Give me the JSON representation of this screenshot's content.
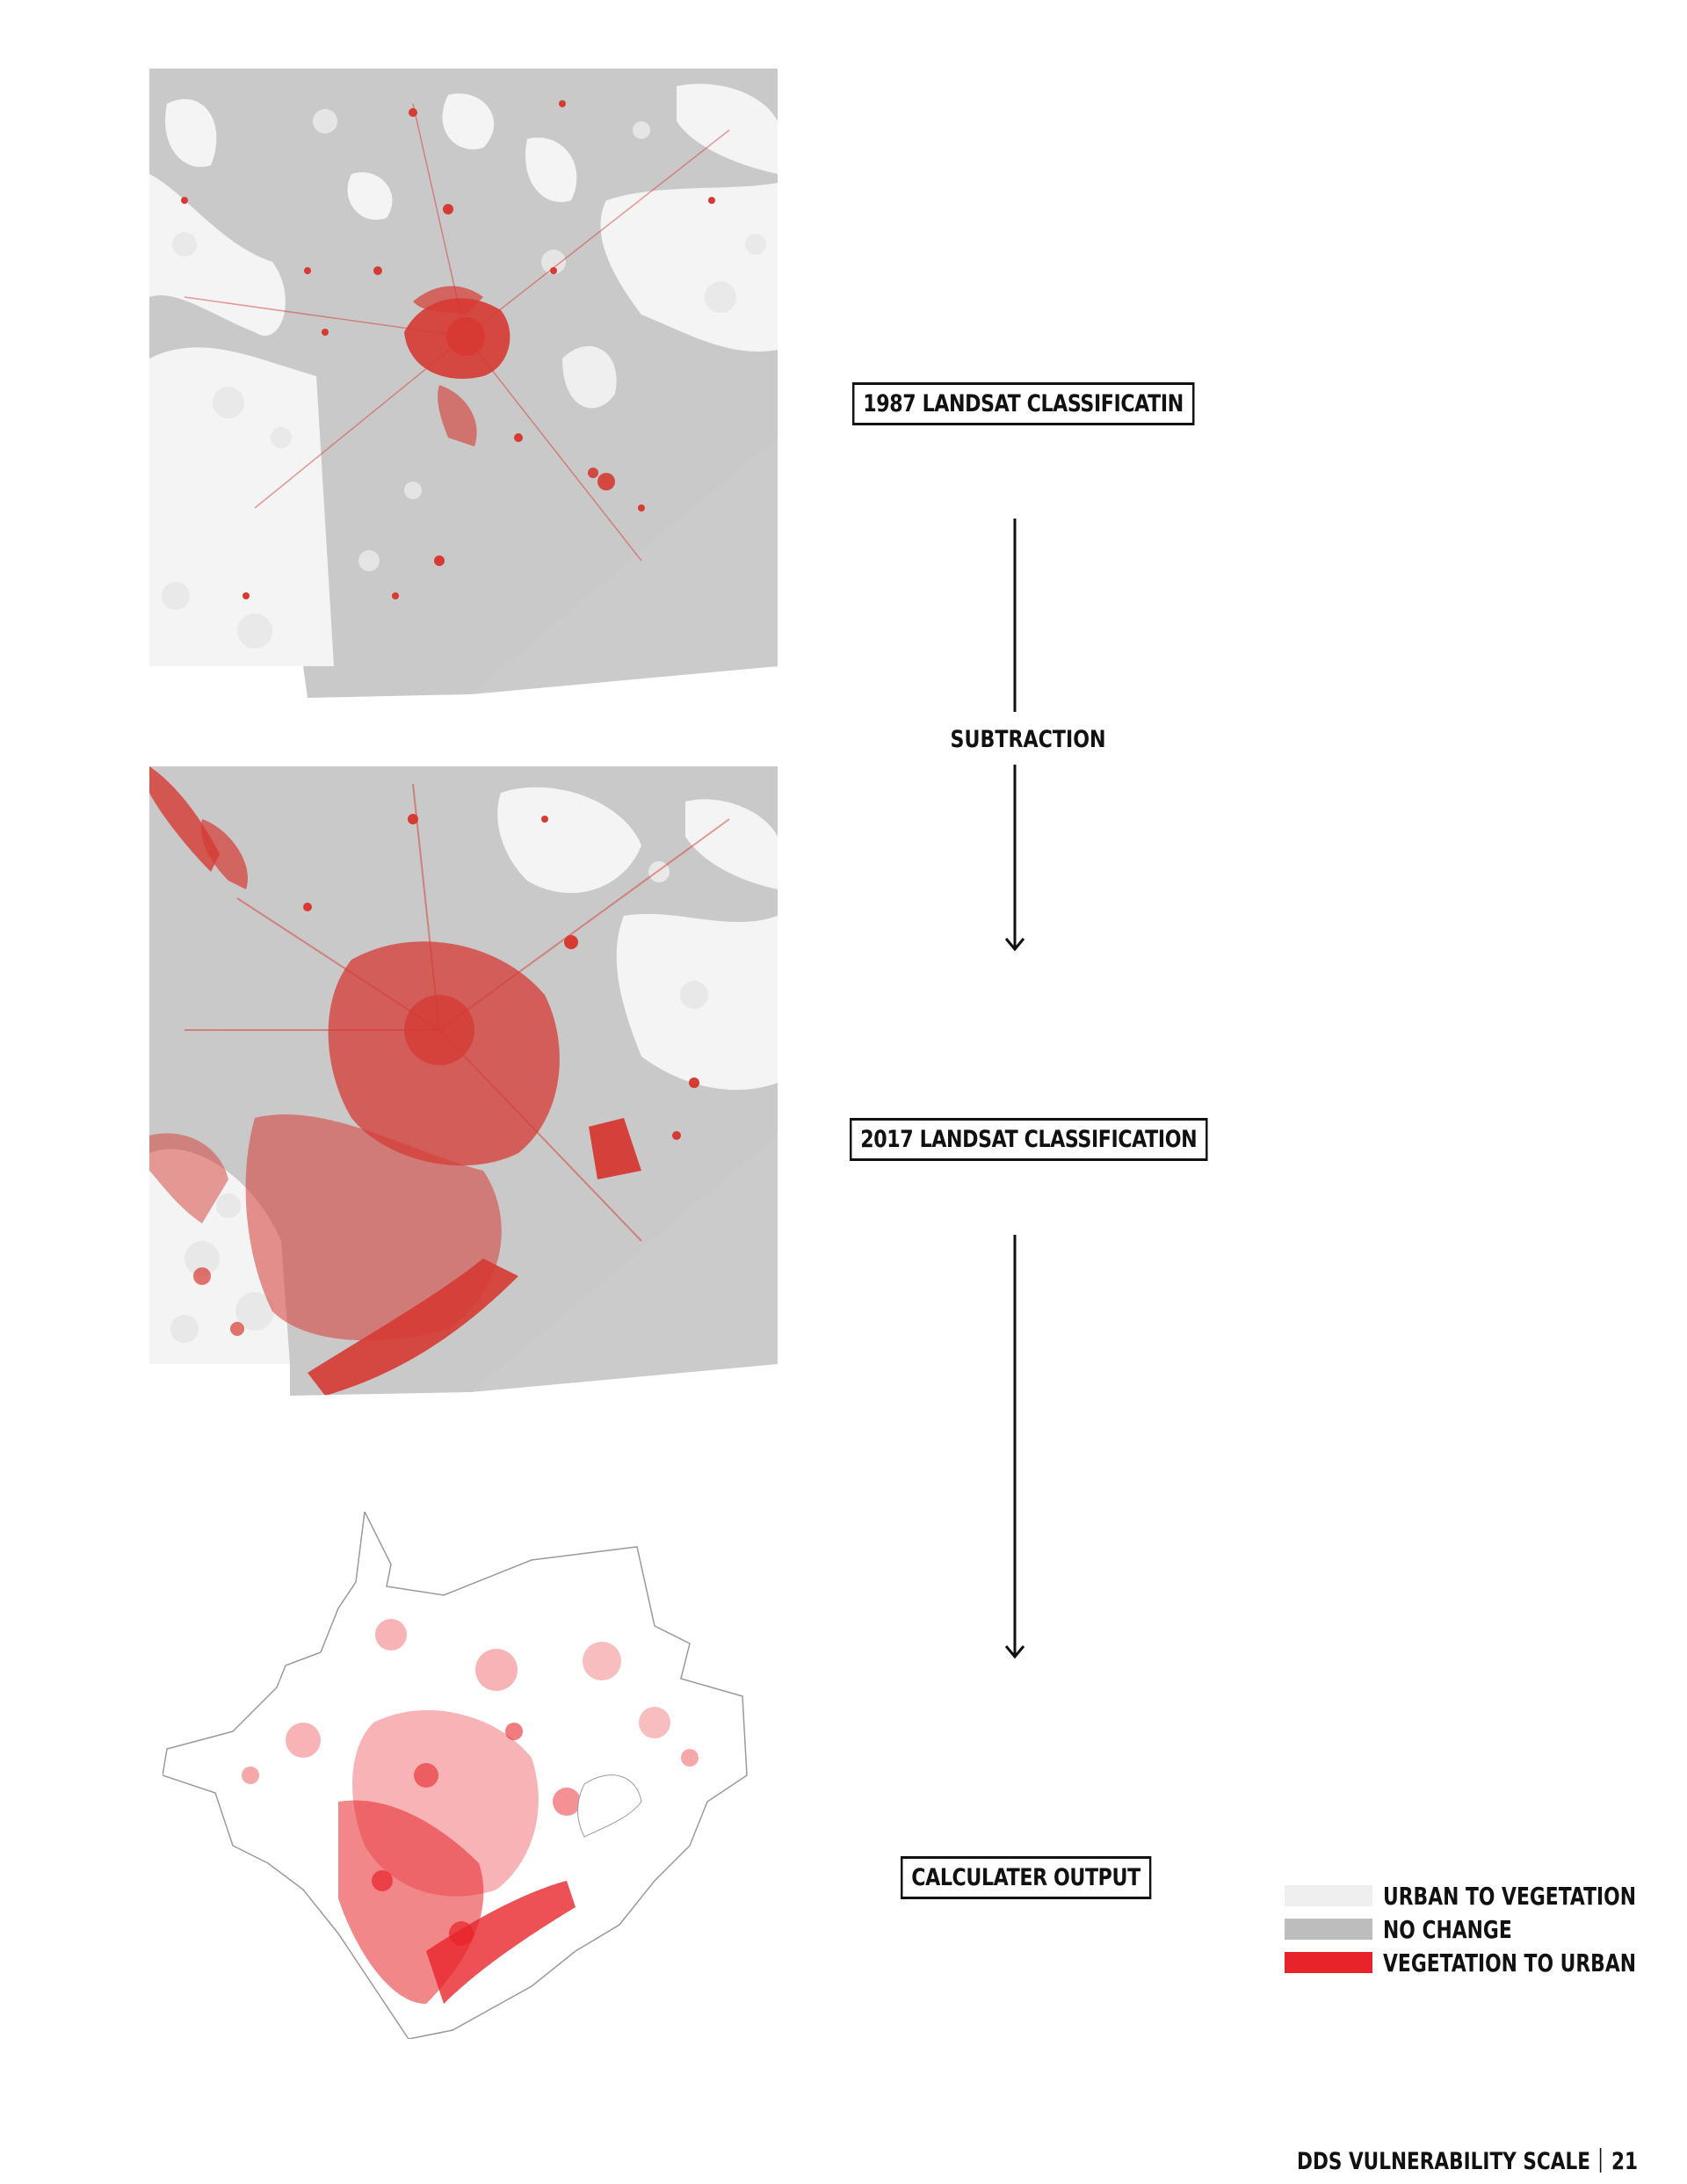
{
  "panels": {
    "map_1987_label": "1987 LANDSAT CLASSIFICATIN",
    "operation_label": "SUBTRACTION",
    "map_2017_label": "2017 LANDSAT CLASSIFICATION",
    "output_label": "CALCULATER OUTPUT"
  },
  "legend": {
    "items": [
      {
        "label": "URBAN TO VEGETATION",
        "color": "#efefef"
      },
      {
        "label": "NO CHANGE",
        "color": "#bdbdbd"
      },
      {
        "label": "VEGETATION TO URBAN",
        "color": "#e8242a"
      }
    ]
  },
  "footer": {
    "title": "DDS VULNERABILITY SCALE",
    "page_number": "21"
  },
  "colors": {
    "land_gray": "#c9c9c9",
    "urban_red": "#d63a33",
    "output_red": "#e8242a"
  }
}
